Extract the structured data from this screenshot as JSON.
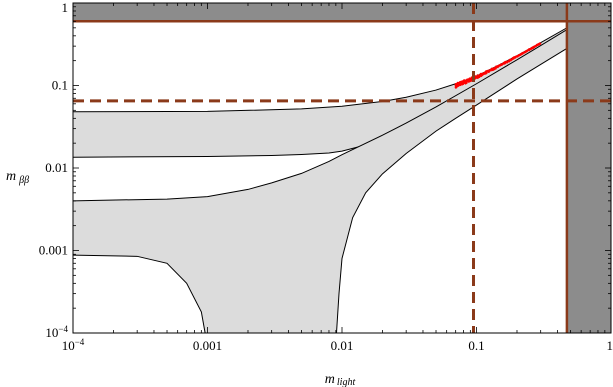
{
  "chart_data": {
    "type": "line",
    "title": "",
    "xscale": "log",
    "yscale": "log",
    "xlim": [
      0.0001,
      1
    ],
    "ylim": [
      0.0001,
      1
    ],
    "xlabel": {
      "main": "m",
      "sub": "light"
    },
    "ylabel": {
      "main": "m",
      "sub": "ββ"
    },
    "x_ticks": [
      {
        "value": 0.0001,
        "label_base": "10",
        "label_exp": "−4"
      },
      {
        "value": 0.001,
        "label": "0.001"
      },
      {
        "value": 0.01,
        "label": "0.01"
      },
      {
        "value": 0.1,
        "label": "0.1"
      },
      {
        "value": 1,
        "label": "1"
      }
    ],
    "y_ticks": [
      {
        "value": 0.0001,
        "label_base": "10",
        "label_exp": "−4"
      },
      {
        "value": 0.001,
        "label": "0.001"
      },
      {
        "value": 0.01,
        "label": "0.01"
      },
      {
        "value": 0.1,
        "label": "0.1"
      },
      {
        "value": 1,
        "label": "1"
      }
    ],
    "grid": false,
    "colors": {
      "band_fill": "#dcdcdc",
      "band_edge": "#000000",
      "excluded_fill": "#8c8c8c",
      "limit_line": "#8b3a1a",
      "scatter": "#ff0000"
    },
    "bands": [
      {
        "name": "inverted",
        "upper": [
          [
            0.0001,
            0.048
          ],
          [
            0.001,
            0.0485
          ],
          [
            0.005,
            0.052
          ],
          [
            0.01,
            0.056
          ],
          [
            0.02,
            0.064
          ],
          [
            0.03,
            0.072
          ],
          [
            0.05,
            0.088
          ],
          [
            0.07,
            0.105
          ],
          [
            0.1,
            0.13
          ],
          [
            0.15,
            0.18
          ],
          [
            0.2,
            0.23
          ],
          [
            0.3,
            0.33
          ],
          [
            0.5,
            0.53
          ],
          [
            1,
            1.02
          ]
        ],
        "lower": [
          [
            0.0001,
            0.0135
          ],
          [
            0.001,
            0.0138
          ],
          [
            0.003,
            0.0142
          ],
          [
            0.005,
            0.0146
          ],
          [
            0.008,
            0.0152
          ],
          [
            0.01,
            0.016
          ],
          [
            0.015,
            0.019
          ],
          [
            0.02,
            0.022
          ],
          [
            0.03,
            0.031
          ],
          [
            0.05,
            0.05
          ],
          [
            0.07,
            0.068
          ],
          [
            0.1,
            0.096
          ],
          [
            0.15,
            0.145
          ],
          [
            0.2,
            0.195
          ],
          [
            0.3,
            0.29
          ],
          [
            0.5,
            0.49
          ],
          [
            1,
            0.98
          ]
        ]
      },
      {
        "name": "normal",
        "upper": [
          [
            0.0001,
            0.004
          ],
          [
            0.0005,
            0.0042
          ],
          [
            0.001,
            0.0045
          ],
          [
            0.002,
            0.0055
          ],
          [
            0.003,
            0.0066
          ],
          [
            0.005,
            0.0086
          ],
          [
            0.008,
            0.012
          ],
          [
            0.01,
            0.0145
          ],
          [
            0.02,
            0.025
          ],
          [
            0.03,
            0.035
          ],
          [
            0.05,
            0.055
          ],
          [
            0.1,
            0.105
          ],
          [
            0.2,
            0.205
          ],
          [
            0.3,
            0.305
          ],
          [
            0.5,
            0.505
          ],
          [
            1,
            1.005
          ]
        ],
        "lower": [
          [
            0.0001,
            0.00088
          ],
          [
            0.0003,
            0.00085
          ],
          [
            0.0005,
            0.0007
          ],
          [
            0.0007,
            0.0004
          ],
          [
            0.0009,
            0.00018
          ],
          [
            0.00096,
            0.0001
          ],
          [
            0.0091,
            0.0001
          ],
          [
            0.0095,
            0.0003
          ],
          [
            0.01,
            0.0008
          ],
          [
            0.012,
            0.0025
          ],
          [
            0.015,
            0.005
          ],
          [
            0.02,
            0.0085
          ],
          [
            0.03,
            0.015
          ],
          [
            0.05,
            0.028
          ],
          [
            0.07,
            0.04
          ],
          [
            0.1,
            0.058
          ],
          [
            0.2,
            0.12
          ],
          [
            0.3,
            0.18
          ],
          [
            0.5,
            0.3
          ],
          [
            1,
            0.6
          ]
        ]
      }
    ],
    "excluded_regions": [
      {
        "name": "excluded-top",
        "y_min": 0.6,
        "y_max": 1,
        "x_min": 0.0001,
        "x_max": 1
      },
      {
        "name": "excluded-right",
        "x_min": 0.47,
        "x_max": 1,
        "y_min": 0.0001,
        "y_max": 1
      }
    ],
    "limit_lines": [
      {
        "name": "solid-horizontal",
        "orientation": "horizontal",
        "value": 0.6,
        "style": "solid"
      },
      {
        "name": "solid-vertical",
        "orientation": "vertical",
        "value": 0.47,
        "style": "solid"
      },
      {
        "name": "dashed-horizontal",
        "orientation": "horizontal",
        "value": 0.065,
        "style": "dashed"
      },
      {
        "name": "dashed-vertical",
        "orientation": "vertical",
        "value": 0.095,
        "style": "dashed"
      }
    ],
    "scatter": {
      "name": "points",
      "count": 700,
      "x_range": [
        0.07,
        0.3
      ],
      "cluster_center_fraction": 0.88,
      "cluster_spread_fraction": 0.13
    }
  }
}
